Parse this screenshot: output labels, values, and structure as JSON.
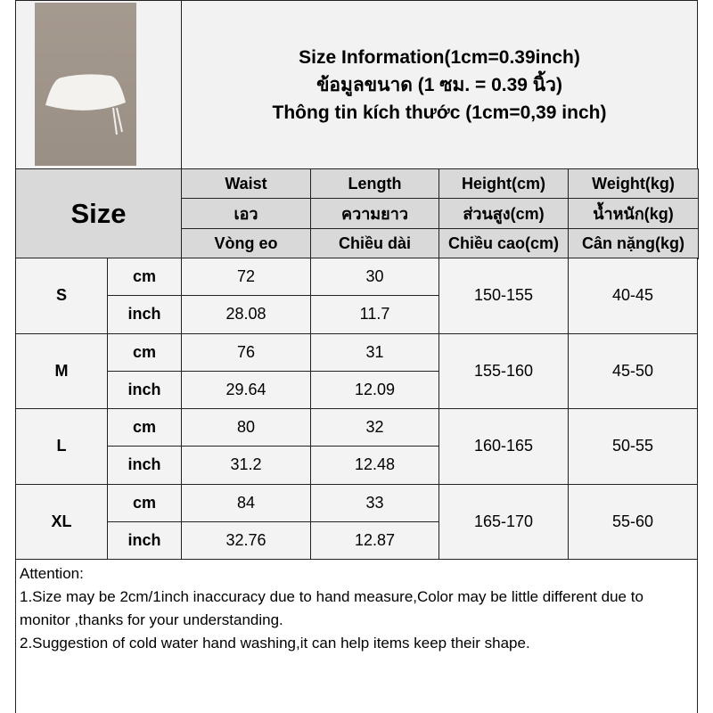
{
  "title": {
    "line1": "Size Information(1cm=0.39inch)",
    "line2": "ข้อมูลขนาด (1 ซม. = 0.39 นิ้ว)",
    "line3": "Thông tin kích thước (1cm=0,39 inch)"
  },
  "size_label": "Size",
  "columns": [
    {
      "en": "Waist",
      "th": "เอว",
      "vi": "Vòng eo"
    },
    {
      "en": "Length",
      "th": "ความยาว",
      "vi": "Chiều dài"
    },
    {
      "en": "Height(cm)",
      "th": "ส่วนสูง(cm)",
      "vi": "Chiều cao(cm)"
    },
    {
      "en": "Weight(kg)",
      "th": "น้ำหนัก(kg)",
      "vi": "Cân nặng(kg)"
    }
  ],
  "units": {
    "cm": "cm",
    "inch": "inch"
  },
  "rows": [
    {
      "size": "S",
      "waist_cm": "72",
      "length_cm": "30",
      "waist_in": "28.08",
      "length_in": "11.7",
      "height": "150-155",
      "weight": "40-45"
    },
    {
      "size": "M",
      "waist_cm": "76",
      "length_cm": "31",
      "waist_in": "29.64",
      "length_in": "12.09",
      "height": "155-160",
      "weight": "45-50"
    },
    {
      "size": "L",
      "waist_cm": "80",
      "length_cm": "32",
      "waist_in": "31.2",
      "length_in": "12.48",
      "height": "160-165",
      "weight": "50-55"
    },
    {
      "size": "XL",
      "waist_cm": "84",
      "length_cm": "33",
      "waist_in": "32.76",
      "length_in": "12.87",
      "height": "165-170",
      "weight": "55-60"
    }
  ],
  "attention": {
    "title": "Attention:",
    "line1": "1.Size may be 2cm/1inch inaccuracy due to hand measure,Color may be little different due to monitor ,thanks for your understanding.",
    "line2": "2.Suggestion of cold water hand washing,it can help items keep their shape."
  }
}
